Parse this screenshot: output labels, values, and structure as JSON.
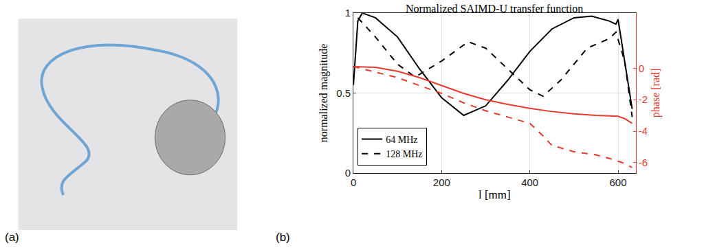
{
  "chart_data": {
    "type": "line",
    "title": "Normalized SAIMD-U transfer function",
    "x_label": "l [mm]",
    "y_label": "normalized magnitude",
    "y2_label": "phase [rad]",
    "panel_labels": [
      "(a)",
      "(b)"
    ],
    "xlim": [
      0,
      640
    ],
    "xticks": [
      0,
      200,
      400,
      600
    ],
    "ylim": [
      0,
      1
    ],
    "yticks": [
      0,
      0.5,
      1
    ],
    "y2lim": [
      -6.65,
      3.5
    ],
    "y2ticks": [
      -6,
      -4,
      -2,
      0
    ],
    "grid": true,
    "legend": "lower left",
    "series": [
      {
        "name": "64 MHz",
        "color": "#000000",
        "line_style": "solid",
        "x": [
          0,
          10,
          20,
          50,
          100,
          150,
          200,
          250,
          300,
          350,
          400,
          450,
          500,
          540,
          580,
          595,
          600,
          615,
          632
        ],
        "values": [
          0.55,
          0.95,
          1.0,
          0.97,
          0.85,
          0.65,
          0.47,
          0.36,
          0.42,
          0.58,
          0.76,
          0.9,
          0.97,
          0.98,
          0.95,
          0.93,
          0.96,
          0.7,
          0.4
        ]
      },
      {
        "name": "128 MHz",
        "color": "#000000",
        "line_style": "dashed",
        "x": [
          10,
          50,
          100,
          140,
          200,
          260,
          300,
          350,
          400,
          430,
          470,
          530,
          580,
          595,
          615,
          632
        ],
        "values": [
          0.97,
          0.85,
          0.68,
          0.6,
          0.7,
          0.82,
          0.78,
          0.65,
          0.52,
          0.48,
          0.58,
          0.78,
          0.84,
          0.88,
          0.7,
          0.35
        ]
      },
      {
        "color": "#e8392e",
        "line_style": "solid",
        "axis": "y2",
        "x": [
          0,
          50,
          100,
          150,
          200,
          250,
          300,
          350,
          400,
          450,
          500,
          550,
          600,
          615,
          632
        ],
        "values": [
          0.1,
          0.05,
          -0.2,
          -0.6,
          -1.1,
          -1.6,
          -2.0,
          -2.3,
          -2.55,
          -2.75,
          -2.9,
          -3.0,
          -3.05,
          -3.2,
          -3.5
        ]
      },
      {
        "color": "#e8392e",
        "line_style": "dashed",
        "axis": "y2",
        "x": [
          0,
          100,
          150,
          200,
          250,
          300,
          350,
          400,
          430,
          450,
          500,
          550,
          590,
          610,
          632
        ],
        "values": [
          0.1,
          -0.6,
          -1.1,
          -1.6,
          -2.2,
          -2.7,
          -3.1,
          -3.5,
          -4.3,
          -4.9,
          -5.3,
          -5.5,
          -5.8,
          -6.0,
          -6.3
        ]
      }
    ]
  }
}
